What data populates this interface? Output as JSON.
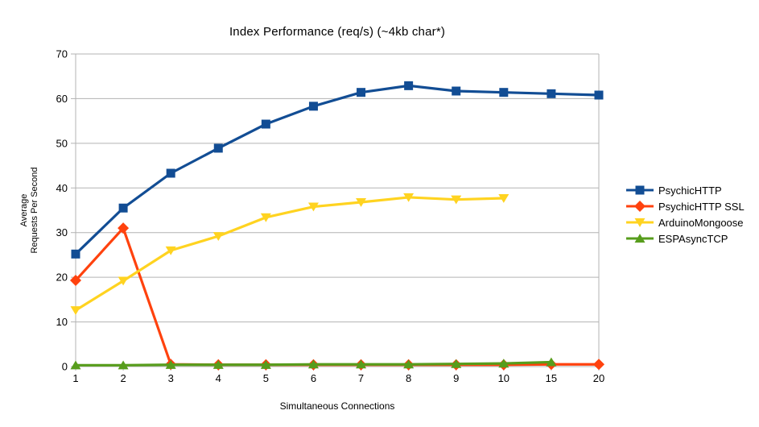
{
  "chart_data": {
    "type": "line",
    "title": "Index Performance (req/s) (~4kb char*)",
    "xlabel": "Simultaneous Connections",
    "ylabel_lines": [
      "Average",
      "Requests Per Second"
    ],
    "categories": [
      "1",
      "2",
      "3",
      "4",
      "5",
      "6",
      "7",
      "8",
      "9",
      "10",
      "15",
      "20"
    ],
    "ylim": [
      0,
      70
    ],
    "yticks": [
      0,
      10,
      20,
      30,
      40,
      50,
      60,
      70
    ],
    "grid": "horizontal",
    "legend_position": "right-middle",
    "series": [
      {
        "name": "PsychicHTTP",
        "color": "#124d94",
        "marker": "square",
        "values": [
          25.2,
          35.5,
          43.3,
          48.9,
          54.3,
          58.3,
          61.4,
          62.9,
          61.7,
          61.4,
          61.1,
          60.8
        ]
      },
      {
        "name": "PsychicHTTP SSL",
        "color": "#ff420e",
        "marker": "diamond",
        "values": [
          19.3,
          31,
          0.5,
          0.4,
          0.4,
          0.4,
          0.4,
          0.4,
          0.4,
          0.4,
          0.5,
          0.5
        ]
      },
      {
        "name": "ArduinoMongoose",
        "color": "#ffd320",
        "marker": "triangle-down",
        "values": [
          12.6,
          19.2,
          26,
          29.2,
          33.4,
          35.8,
          36.8,
          37.9,
          37.4,
          37.7
        ]
      },
      {
        "name": "ESPAsyncTCP",
        "color": "#579d1c",
        "marker": "triangle-up",
        "values": [
          0.3,
          0.3,
          0.4,
          0.4,
          0.4,
          0.5,
          0.5,
          0.5,
          0.6,
          0.7,
          1.0
        ]
      }
    ]
  },
  "colors": {
    "grid": "#b3b3b3",
    "axis": "#b3b3b3",
    "text": "#000000",
    "background": "#ffffff"
  }
}
